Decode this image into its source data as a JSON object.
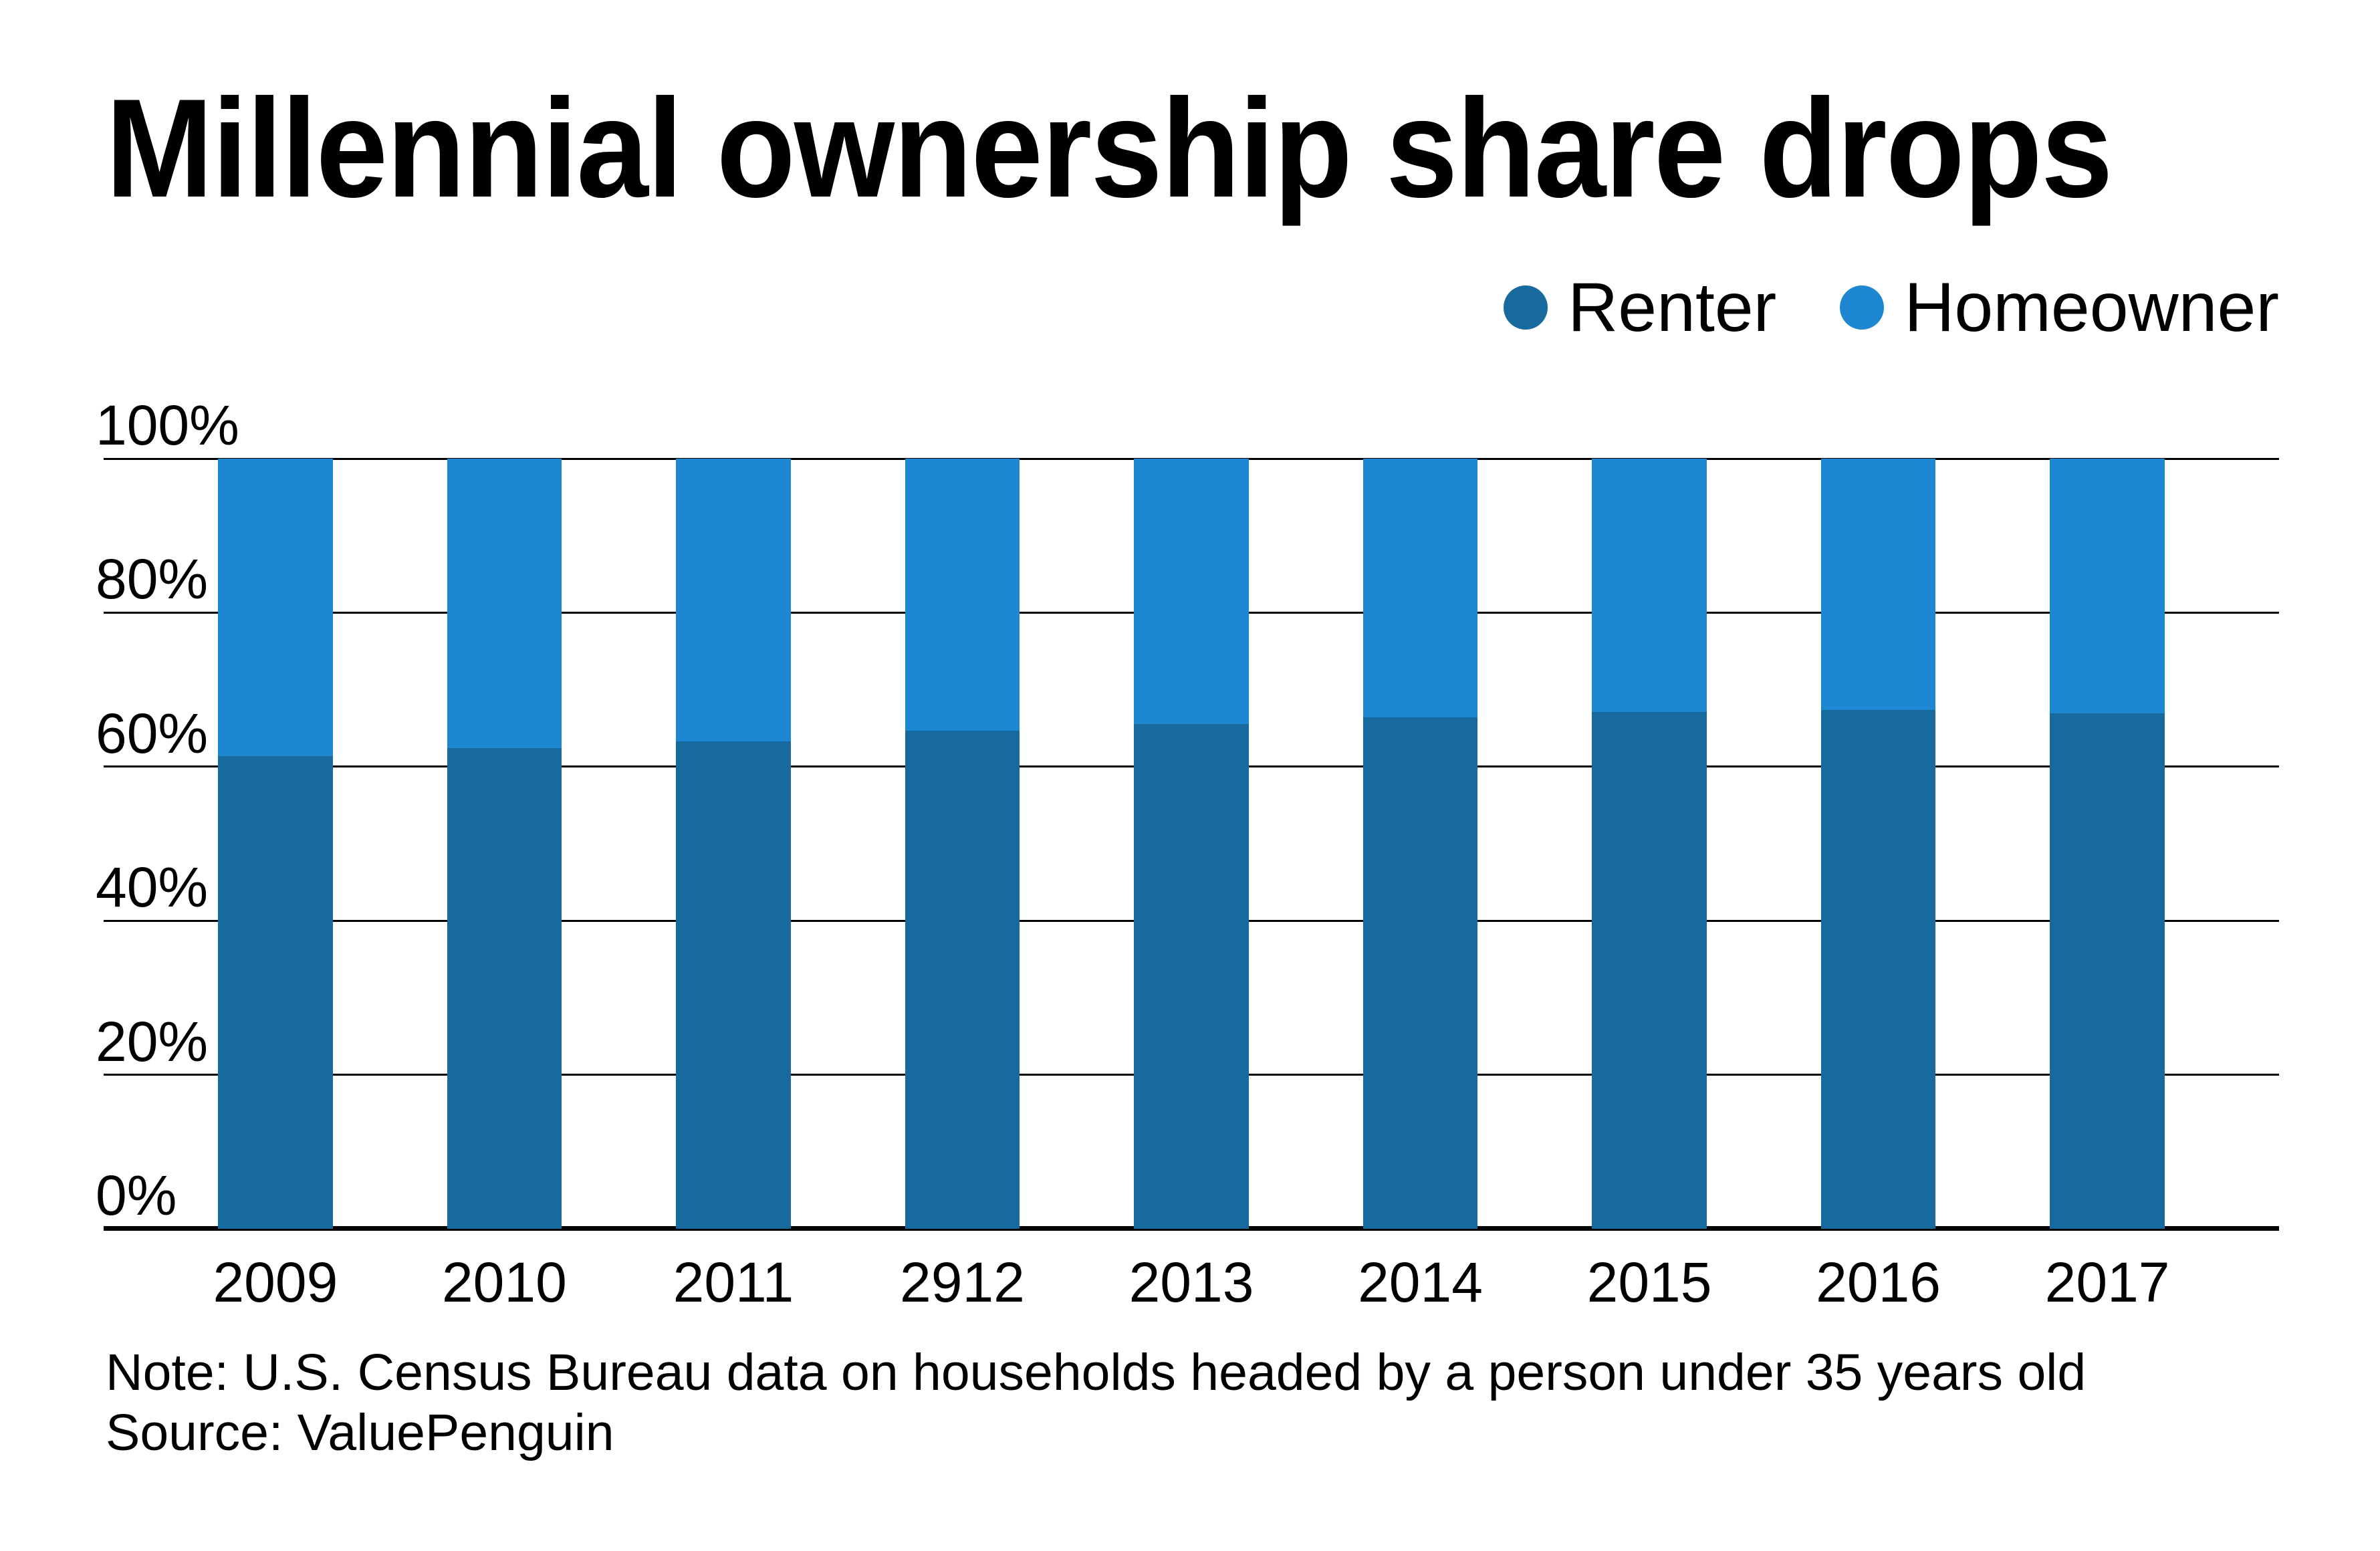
{
  "title": "Millennial ownership share drops",
  "legend": {
    "items": [
      {
        "label": "Renter",
        "color": "#176A9E"
      },
      {
        "label": "Homeowner",
        "color": "#1E87D1"
      }
    ]
  },
  "note": {
    "line1": "Note: U.S. Census Bureau data on households headed by a person under 35 years old",
    "line2": "Source: ValuePenguin"
  },
  "colors": {
    "renter": "#176A9E",
    "homeowner": "#1E87D1",
    "gridline": "#000000",
    "text": "#000000",
    "background": "#ffffff"
  },
  "chart_data": {
    "type": "bar",
    "stacked": true,
    "unit": "%",
    "categories": [
      "2009",
      "2010",
      "2011",
      "2912",
      "2013",
      "2014",
      "2015",
      "2016",
      "2017"
    ],
    "series": [
      {
        "name": "Renter",
        "color": "#176A9E",
        "values": [
          61.4,
          62.4,
          63.3,
          64.7,
          65.5,
          66.4,
          67.1,
          67.4,
          66.9
        ]
      },
      {
        "name": "Homeowner",
        "color": "#1E87D1",
        "values": [
          38.6,
          37.6,
          36.7,
          35.3,
          34.5,
          33.6,
          32.9,
          32.6,
          33.1
        ]
      }
    ],
    "title": "Millennial ownership share drops",
    "xlabel": "",
    "ylabel": "",
    "ylim": [
      0,
      100
    ],
    "y_ticks": [
      "100%",
      "80%",
      "60%",
      "40%",
      "20%",
      "0%"
    ],
    "y_tick_step": 20,
    "grid": true,
    "legend_position": "top-right"
  }
}
